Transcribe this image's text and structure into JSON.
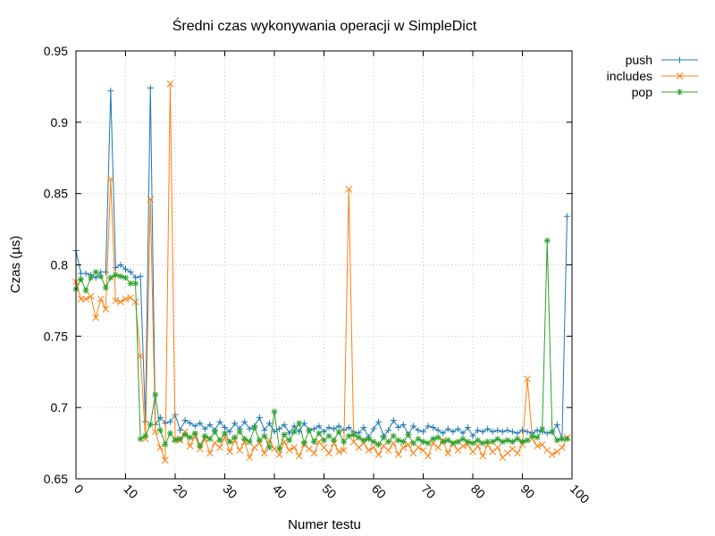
{
  "chart_data": {
    "type": "line",
    "title": "Średni czas wykonywania operacji w SimpleDict",
    "xlabel": "Numer testu",
    "ylabel": "Czas (µs)",
    "xlim": [
      0,
      100
    ],
    "ylim": [
      0.65,
      0.95
    ],
    "x_ticks": [
      0,
      10,
      20,
      30,
      40,
      50,
      60,
      70,
      80,
      90,
      100
    ],
    "y_ticks": [
      0.65,
      0.7,
      0.75,
      0.8,
      0.85,
      0.9,
      0.95
    ],
    "x_tick_labels": [
      "0",
      "10",
      "20",
      "30",
      "40",
      "50",
      "60",
      "70",
      "80",
      "90",
      "100"
    ],
    "y_tick_labels": [
      "0.65",
      "0.7",
      "0.75",
      "0.8",
      "0.85",
      "0.9",
      "0.95"
    ],
    "grid": true,
    "legend_position": "outside-top-right",
    "series": [
      {
        "name": "push",
        "color": "#1f77b4",
        "marker": "plus",
        "values": [
          0.81,
          0.794,
          0.794,
          0.793,
          0.791,
          0.795,
          0.795,
          0.922,
          0.798,
          0.8,
          0.797,
          0.795,
          0.791,
          0.792,
          0.69,
          0.924,
          0.688,
          0.693,
          0.689,
          0.69,
          0.695,
          0.684,
          0.691,
          0.689,
          0.687,
          0.689,
          0.685,
          0.688,
          0.684,
          0.69,
          0.686,
          0.683,
          0.689,
          0.685,
          0.69,
          0.685,
          0.687,
          0.693,
          0.684,
          0.689,
          0.683,
          0.685,
          0.688,
          0.682,
          0.687,
          0.683,
          0.689,
          0.684,
          0.685,
          0.687,
          0.683,
          0.686,
          0.685,
          0.687,
          0.684,
          0.686,
          0.683,
          0.682,
          0.686,
          0.679,
          0.685,
          0.69,
          0.68,
          0.684,
          0.691,
          0.686,
          0.688,
          0.681,
          0.687,
          0.684,
          0.683,
          0.687,
          0.686,
          0.684,
          0.682,
          0.685,
          0.683,
          0.685,
          0.682,
          0.686,
          0.68,
          0.684,
          0.683,
          0.685,
          0.683,
          0.684,
          0.683,
          0.684,
          0.683,
          0.682,
          0.684,
          0.683,
          0.682,
          0.684,
          0.683,
          0.682,
          0.683,
          0.688,
          0.678,
          0.834
        ]
      },
      {
        "name": "includes",
        "color": "#ff7f0e",
        "marker": "cross",
        "values": [
          0.788,
          0.776,
          0.776,
          0.778,
          0.763,
          0.776,
          0.769,
          0.86,
          0.775,
          0.774,
          0.776,
          0.777,
          0.774,
          0.736,
          0.678,
          0.846,
          0.683,
          0.672,
          0.663,
          0.927,
          0.678,
          0.677,
          0.683,
          0.673,
          0.68,
          0.671,
          0.678,
          0.668,
          0.675,
          0.672,
          0.679,
          0.669,
          0.677,
          0.67,
          0.676,
          0.665,
          0.672,
          0.675,
          0.668,
          0.677,
          0.671,
          0.667,
          0.676,
          0.67,
          0.672,
          0.666,
          0.674,
          0.671,
          0.668,
          0.676,
          0.672,
          0.668,
          0.675,
          0.669,
          0.67,
          0.853,
          0.676,
          0.672,
          0.675,
          0.67,
          0.672,
          0.667,
          0.673,
          0.67,
          0.675,
          0.667,
          0.672,
          0.674,
          0.668,
          0.672,
          0.67,
          0.666,
          0.675,
          0.672,
          0.677,
          0.668,
          0.675,
          0.67,
          0.673,
          0.674,
          0.669,
          0.673,
          0.666,
          0.674,
          0.669,
          0.672,
          0.665,
          0.668,
          0.671,
          0.668,
          0.674,
          0.72,
          0.678,
          0.673,
          0.674,
          0.67,
          0.667,
          0.669,
          0.672,
          0.679
        ]
      },
      {
        "name": "pop",
        "color": "#2ca02c",
        "marker": "star",
        "values": [
          0.783,
          0.79,
          0.782,
          0.791,
          0.795,
          0.792,
          0.784,
          0.791,
          0.793,
          0.792,
          0.791,
          0.787,
          0.787,
          0.678,
          0.68,
          0.688,
          0.709,
          0.684,
          0.674,
          0.682,
          0.677,
          0.678,
          0.681,
          0.679,
          0.682,
          0.673,
          0.68,
          0.678,
          0.683,
          0.677,
          0.682,
          0.676,
          0.679,
          0.683,
          0.678,
          0.676,
          0.686,
          0.677,
          0.68,
          0.672,
          0.697,
          0.671,
          0.681,
          0.677,
          0.683,
          0.689,
          0.675,
          0.684,
          0.676,
          0.682,
          0.677,
          0.68,
          0.677,
          0.683,
          0.676,
          0.68,
          0.681,
          0.679,
          0.677,
          0.678,
          0.676,
          0.674,
          0.679,
          0.676,
          0.68,
          0.677,
          0.676,
          0.681,
          0.675,
          0.678,
          0.676,
          0.675,
          0.678,
          0.679,
          0.676,
          0.677,
          0.675,
          0.676,
          0.678,
          0.676,
          0.675,
          0.677,
          0.675,
          0.676,
          0.676,
          0.678,
          0.676,
          0.677,
          0.676,
          0.678,
          0.676,
          0.677,
          0.68,
          0.679,
          0.685,
          0.817,
          0.683,
          0.677,
          0.678,
          0.678
        ]
      }
    ]
  }
}
